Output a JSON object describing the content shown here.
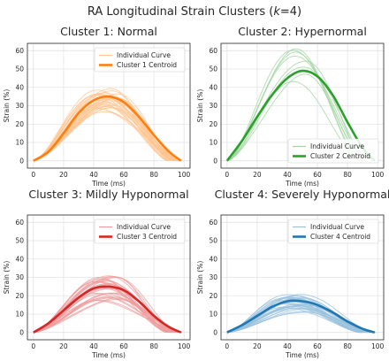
{
  "figure": {
    "title_prefix": "RA Longitudinal Strain Clusters (",
    "title_k": "k",
    "title_suffix": "=4)"
  },
  "chart_data": [
    {
      "type": "line",
      "title": "Cluster 1: Normal",
      "xlabel": "Time (ms)",
      "ylabel": "Strain (%)",
      "xlim": [
        -4,
        104
      ],
      "ylim": [
        -4,
        64
      ],
      "xticks": [
        0,
        20,
        40,
        60,
        80,
        100
      ],
      "yticks": [
        0,
        10,
        20,
        30,
        40,
        50,
        60
      ],
      "grid": true,
      "legend": {
        "position": "top-right",
        "labels": [
          "Individual Curve",
          "Cluster 1 Centroid"
        ]
      },
      "color": "#ff7f0e",
      "peak_time_ms": 48,
      "centroid_peak_strain": 35,
      "individual_curve_count": 30,
      "individual_peak_range": [
        25,
        42
      ],
      "series": [
        {
          "name": "Cluster 1 Centroid",
          "x": [
            0,
            10,
            20,
            30,
            40,
            50,
            60,
            70,
            80,
            90,
            98
          ],
          "y": [
            0,
            5,
            15,
            26,
            33,
            35,
            32,
            24,
            14,
            5,
            0
          ]
        }
      ]
    },
    {
      "type": "line",
      "title": "Cluster 2: Hypernormal",
      "xlabel": "Time (ms)",
      "ylabel": "Strain (%)",
      "xlim": [
        -4,
        104
      ],
      "ylim": [
        -4,
        64
      ],
      "xticks": [
        0,
        20,
        40,
        60,
        80,
        100
      ],
      "yticks": [
        0,
        10,
        20,
        30,
        40,
        50,
        60
      ],
      "grid": true,
      "legend": {
        "position": "bottom-right",
        "labels": [
          "Individual Curve",
          "Cluster 2 Centroid"
        ]
      },
      "color": "#2ca02c",
      "peak_time_ms": 48,
      "centroid_peak_strain": 49,
      "individual_curve_count": 8,
      "individual_peak_range": [
        41,
        61
      ],
      "series": [
        {
          "name": "Cluster 2 Centroid",
          "x": [
            0,
            10,
            20,
            30,
            40,
            50,
            60,
            70,
            80,
            90,
            98
          ],
          "y": [
            0,
            11,
            24,
            36,
            45,
            49,
            46,
            36,
            21,
            7,
            0
          ]
        }
      ]
    },
    {
      "type": "line",
      "title": "Cluster 3: Mildly Hyponormal",
      "xlabel": "Time (ms)",
      "ylabel": "Strain (%)",
      "xlim": [
        -4,
        104
      ],
      "ylim": [
        -4,
        64
      ],
      "xticks": [
        0,
        20,
        40,
        60,
        80,
        100
      ],
      "yticks": [
        0,
        10,
        20,
        30,
        40,
        50,
        60
      ],
      "grid": true,
      "legend": {
        "position": "top-right",
        "labels": [
          "Individual Curve",
          "Cluster 3 Centroid"
        ]
      },
      "color": "#d62728",
      "peak_time_ms": 48,
      "centroid_peak_strain": 25,
      "individual_curve_count": 30,
      "individual_peak_range": [
        17,
        31
      ],
      "series": [
        {
          "name": "Cluster 3 Centroid",
          "x": [
            0,
            10,
            20,
            30,
            40,
            50,
            60,
            70,
            80,
            90,
            98
          ],
          "y": [
            0,
            5,
            12,
            19,
            24,
            25,
            23,
            17,
            9,
            3,
            0
          ]
        }
      ]
    },
    {
      "type": "line",
      "title": "Cluster 4: Severely Hyponormal",
      "xlabel": "Time (ms)",
      "ylabel": "Strain (%)",
      "xlim": [
        -4,
        104
      ],
      "ylim": [
        -4,
        64
      ],
      "xticks": [
        0,
        20,
        40,
        60,
        80,
        100
      ],
      "yticks": [
        0,
        10,
        20,
        30,
        40,
        50,
        60
      ],
      "grid": true,
      "legend": {
        "position": "top-right",
        "labels": [
          "Individual Curve",
          "Cluster 4 Centroid"
        ]
      },
      "color": "#1f77b4",
      "peak_time_ms": 45,
      "centroid_peak_strain": 17,
      "individual_curve_count": 30,
      "individual_peak_range": [
        11,
        21
      ],
      "series": [
        {
          "name": "Cluster 4 Centroid",
          "x": [
            0,
            10,
            20,
            30,
            40,
            50,
            60,
            70,
            80,
            90,
            98
          ],
          "y": [
            0,
            4,
            9,
            14,
            17,
            17,
            15,
            11,
            6,
            2,
            0
          ]
        }
      ]
    }
  ]
}
